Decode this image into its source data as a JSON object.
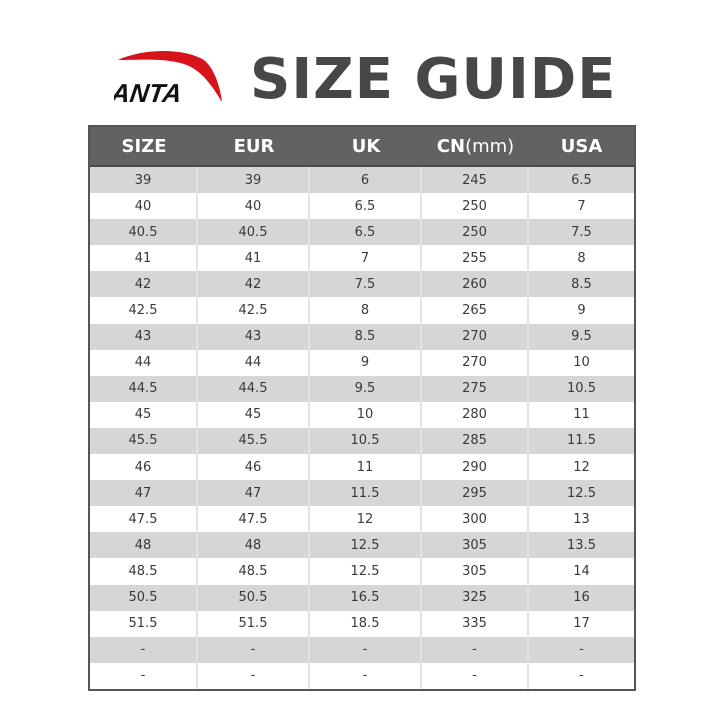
{
  "brand": {
    "logo_text": "ANTA",
    "logo_color": "#d7141c"
  },
  "title": "SIZE GUIDE",
  "table": {
    "headers": [
      "SIZE",
      "EUR",
      "UK",
      "CN",
      "USA"
    ],
    "header_unit": "(mm)",
    "rows": [
      [
        "39",
        "39",
        "6",
        "245",
        "6.5"
      ],
      [
        "40",
        "40",
        "6.5",
        "250",
        "7"
      ],
      [
        "40.5",
        "40.5",
        "6.5",
        "250",
        "7.5"
      ],
      [
        "41",
        "41",
        "7",
        "255",
        "8"
      ],
      [
        "42",
        "42",
        "7.5",
        "260",
        "8.5"
      ],
      [
        "42.5",
        "42.5",
        "8",
        "265",
        "9"
      ],
      [
        "43",
        "43",
        "8.5",
        "270",
        "9.5"
      ],
      [
        "44",
        "44",
        "9",
        "270",
        "10"
      ],
      [
        "44.5",
        "44.5",
        "9.5",
        "275",
        "10.5"
      ],
      [
        "45",
        "45",
        "10",
        "280",
        "11"
      ],
      [
        "45.5",
        "45.5",
        "10.5",
        "285",
        "11.5"
      ],
      [
        "46",
        "46",
        "11",
        "290",
        "12"
      ],
      [
        "47",
        "47",
        "11.5",
        "295",
        "12.5"
      ],
      [
        "47.5",
        "47.5",
        "12",
        "300",
        "13"
      ],
      [
        "48",
        "48",
        "12.5",
        "305",
        "13.5"
      ],
      [
        "48.5",
        "48.5",
        "12.5",
        "305",
        "14"
      ],
      [
        "50.5",
        "50.5",
        "16.5",
        "325",
        "16"
      ],
      [
        "51.5",
        "51.5",
        "18.5",
        "335",
        "17"
      ],
      [
        "-",
        "-",
        "-",
        "-",
        "-"
      ],
      [
        "-",
        "-",
        "-",
        "-",
        "-"
      ]
    ]
  }
}
